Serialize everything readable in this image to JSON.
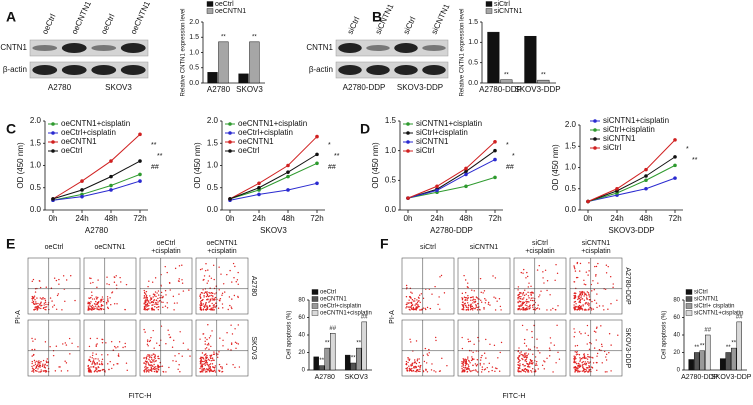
{
  "panel_labels": [
    "A",
    "B",
    "C",
    "D",
    "E",
    "F"
  ],
  "blots": [
    {
      "lanes": [
        "oeCtrl",
        "oeCNTN1",
        "oeCtrl",
        "oeCNTN1"
      ],
      "proteins": [
        "CNTN1",
        "β-actin"
      ],
      "groups": [
        "A2780",
        "SKOV3"
      ]
    },
    {
      "lanes": [
        "siCtrl",
        "siCNTN1",
        "siCtrl",
        "siCNTN1"
      ],
      "proteins": [
        "CNTN1",
        "β-actin"
      ],
      "groups": [
        "A2780-DDP",
        "SKOV3-DDP"
      ]
    }
  ],
  "flow_grids": [
    {
      "columns": [
        [
          "oeCtrl"
        ],
        [
          "oeCNTN1"
        ],
        [
          "oeCtrl",
          "+cisplatin"
        ],
        [
          "oeCNTN1",
          "+cisplatin"
        ]
      ],
      "rows": [
        "A2780",
        "SKOV3"
      ],
      "xlabel": "FITC-H",
      "ylabel": "PI-A"
    },
    {
      "columns": [
        [
          "siCtrl"
        ],
        [
          "siCNTN1"
        ],
        [
          "siCtrl",
          "+cisplatin"
        ],
        [
          "siCNTN1",
          "+cisplatin"
        ]
      ],
      "rows": [
        "A2780-DDP",
        "SKOV3-DDP"
      ],
      "xlabel": "FITC-H",
      "ylabel": "PI-A"
    }
  ],
  "chart_data": [
    {
      "type": "bar",
      "ylabel": "Relative CNTN1 expression level",
      "categories": [
        "A2780",
        "SKOV3"
      ],
      "series": [
        {
          "name": "oeCtrl",
          "color": "#111111",
          "values": [
            0.35,
            0.3
          ]
        },
        {
          "name": "oeCNTN1",
          "color": "#a6a6a6",
          "values": [
            1.35,
            1.35
          ]
        }
      ],
      "ylim": [
        0,
        2
      ],
      "yticks": [
        {
          "value": 0,
          "label": "0.0"
        },
        {
          "value": 0.5,
          "label": "0.5"
        },
        {
          "value": 1,
          "label": "1.0"
        },
        {
          "value": 1.5,
          "label": "1.5"
        },
        {
          "value": 2,
          "label": "2.0"
        }
      ],
      "annotations": [
        {
          "series": 1,
          "index": 0,
          "text": "**"
        },
        {
          "series": 1,
          "index": 1,
          "text": "**"
        }
      ]
    },
    {
      "type": "bar",
      "ylabel": "Relative CNTN1 expression level",
      "categories": [
        "A2780-DDP",
        "SKOV3-DDP"
      ],
      "series": [
        {
          "name": "siCtrl",
          "color": "#111111",
          "values": [
            1.25,
            1.15
          ]
        },
        {
          "name": "siCNTN1",
          "color": "#a6a6a6",
          "values": [
            0.08,
            0.07
          ]
        }
      ],
      "ylim": [
        0,
        1.5
      ],
      "yticks": [
        {
          "value": 0,
          "label": "0.0"
        },
        {
          "value": 0.5,
          "label": "0.5"
        },
        {
          "value": 1,
          "label": "1.0"
        },
        {
          "value": 1.5,
          "label": "1.5"
        }
      ],
      "annotations": [
        {
          "series": 1,
          "index": 0,
          "text": "**"
        },
        {
          "series": 1,
          "index": 1,
          "text": "**"
        }
      ]
    },
    {
      "type": "line",
      "ylabel": "OD (450 nm)",
      "xlabel": "A2780",
      "categories": [
        "0h",
        "24h",
        "48h",
        "72h"
      ],
      "series": [
        {
          "name": "oeCNTN1+cisplatin",
          "color": "#2e9a2e",
          "values": [
            0.22,
            0.35,
            0.55,
            0.8
          ]
        },
        {
          "name": "oeCtrl+cisplatin",
          "color": "#2a2ad0",
          "values": [
            0.22,
            0.3,
            0.45,
            0.65
          ]
        },
        {
          "name": "oeCNTN1",
          "color": "#d02020",
          "values": [
            0.25,
            0.65,
            1.1,
            1.7
          ]
        },
        {
          "name": "oeCtrl",
          "color": "#111111",
          "values": [
            0.25,
            0.45,
            0.75,
            1.1
          ]
        }
      ],
      "ylim": [
        0,
        2
      ],
      "yticks": [
        {
          "value": 0,
          "label": "0.0"
        },
        {
          "value": 0.5,
          "label": "0.5"
        },
        {
          "value": 1,
          "label": "1.0"
        },
        {
          "value": 1.5,
          "label": "1.5"
        },
        {
          "value": 2,
          "label": "2.0"
        }
      ],
      "annotations": [
        "**",
        "**",
        "##"
      ]
    },
    {
      "type": "line",
      "ylabel": "OD (450 nm)",
      "xlabel": "SKOV3",
      "categories": [
        "0h",
        "24h",
        "48h",
        "72h"
      ],
      "series": [
        {
          "name": "oeCNTN1+cisplatin",
          "color": "#2e9a2e",
          "values": [
            0.25,
            0.45,
            0.75,
            1.05
          ]
        },
        {
          "name": "oeCtrl+cisplatin",
          "color": "#2a2ad0",
          "values": [
            0.22,
            0.35,
            0.45,
            0.6
          ]
        },
        {
          "name": "oeCNTN1",
          "color": "#d02020",
          "values": [
            0.25,
            0.6,
            1.0,
            1.65
          ]
        },
        {
          "name": "oeCtrl",
          "color": "#111111",
          "values": [
            0.25,
            0.5,
            0.85,
            1.25
          ]
        }
      ],
      "ylim": [
        0,
        2
      ],
      "yticks": [
        {
          "value": 0,
          "label": "0.0"
        },
        {
          "value": 0.5,
          "label": "0.5"
        },
        {
          "value": 1,
          "label": "1.0"
        },
        {
          "value": 1.5,
          "label": "1.5"
        },
        {
          "value": 2,
          "label": "2.0"
        }
      ],
      "annotations": [
        "*",
        "**",
        "##"
      ]
    },
    {
      "type": "line",
      "ylabel": "OD (450 nm)",
      "xlabel": "A2780-DDP",
      "categories": [
        "0h",
        "24h",
        "48h",
        "72h"
      ],
      "series": [
        {
          "name": "siCNTN1+cisplatin",
          "color": "#2e9a2e",
          "values": [
            0.2,
            0.3,
            0.4,
            0.55
          ]
        },
        {
          "name": "siCtrl+cisplatin",
          "color": "#111111",
          "values": [
            0.2,
            0.35,
            0.65,
            1.0
          ]
        },
        {
          "name": "siCNTN1",
          "color": "#2a2ad0",
          "values": [
            0.2,
            0.33,
            0.6,
            0.85
          ]
        },
        {
          "name": "siCtrl",
          "color": "#d02020",
          "values": [
            0.2,
            0.4,
            0.7,
            1.15
          ]
        }
      ],
      "ylim": [
        0,
        1.5
      ],
      "yticks": [
        {
          "value": 0,
          "label": "0.0"
        },
        {
          "value": 0.5,
          "label": "0.5"
        },
        {
          "value": 1,
          "label": "1.0"
        },
        {
          "value": 1.5,
          "label": "1.5"
        }
      ],
      "annotations": [
        "*",
        "*",
        "##"
      ]
    },
    {
      "type": "line",
      "ylabel": "OD (450 nm)",
      "xlabel": "SKOV3-DDP",
      "categories": [
        "0h",
        "24h",
        "48h",
        "72h"
      ],
      "series": [
        {
          "name": "siCNTN1+cisplatin",
          "color": "#2a2ad0",
          "values": [
            0.2,
            0.35,
            0.5,
            0.75
          ]
        },
        {
          "name": "siCtrl+cisplatin",
          "color": "#2e9a2e",
          "values": [
            0.2,
            0.4,
            0.7,
            1.05
          ]
        },
        {
          "name": "siCNTN1",
          "color": "#111111",
          "values": [
            0.2,
            0.45,
            0.8,
            1.25
          ]
        },
        {
          "name": "siCtrl",
          "color": "#d02020",
          "values": [
            0.2,
            0.5,
            0.95,
            1.65
          ]
        }
      ],
      "ylim": [
        0,
        2
      ],
      "yticks": [
        {
          "value": 0,
          "label": "0.0"
        },
        {
          "value": 0.5,
          "label": "0.5"
        },
        {
          "value": 1,
          "label": "1.0"
        },
        {
          "value": 1.5,
          "label": "1.5"
        },
        {
          "value": 2,
          "label": "2.0"
        }
      ],
      "annotations": [
        "*",
        "**"
      ]
    },
    {
      "type": "bar",
      "ylabel": "Cell apoptosis (%)",
      "categories": [
        "A2780",
        "SKOV3"
      ],
      "series": [
        {
          "name": "oeCtrl",
          "color": "#111111",
          "values": [
            15,
            17
          ]
        },
        {
          "name": "oeCNTN1",
          "color": "#555555",
          "values": [
            5,
            8
          ]
        },
        {
          "name": "oeCtrl+cisplatin",
          "color": "#999999",
          "values": [
            25,
            25
          ]
        },
        {
          "name": "oeCNTN1+cisplatin",
          "color": "#d9d9d9",
          "values": [
            42,
            55
          ]
        }
      ],
      "ylim": [
        0,
        80
      ],
      "yticks": [
        0,
        20,
        40,
        60,
        80
      ],
      "annotations": [
        {
          "series": 1,
          "index": 0,
          "text": "**"
        },
        {
          "series": 2,
          "index": 0,
          "text": "**"
        },
        {
          "series": 3,
          "index": 0,
          "text": "##"
        },
        {
          "series": 1,
          "index": 1,
          "text": "**"
        },
        {
          "series": 2,
          "index": 1,
          "text": "**"
        },
        {
          "series": 3,
          "index": 1,
          "text": "##"
        }
      ]
    },
    {
      "type": "bar",
      "ylabel": "Cell apoptosis (%)",
      "categories": [
        "A2780-DDP",
        "SKOV3-DDP"
      ],
      "series": [
        {
          "name": "siCtrl",
          "color": "#111111",
          "values": [
            12,
            13
          ]
        },
        {
          "name": "siCNTN1",
          "color": "#555555",
          "values": [
            20,
            20
          ]
        },
        {
          "name": "siCtrl+ cisplatin",
          "color": "#999999",
          "values": [
            22,
            25
          ]
        },
        {
          "name": "siCNTN1+cisplatin",
          "color": "#d9d9d9",
          "values": [
            40,
            55
          ]
        }
      ],
      "ylim": [
        0,
        80
      ],
      "yticks": [
        0,
        20,
        40,
        60,
        80
      ],
      "annotations": [
        {
          "series": 1,
          "index": 0,
          "text": "**"
        },
        {
          "series": 2,
          "index": 0,
          "text": "**"
        },
        {
          "series": 3,
          "index": 0,
          "text": "##"
        },
        {
          "series": 1,
          "index": 1,
          "text": "**"
        },
        {
          "series": 2,
          "index": 1,
          "text": "**"
        },
        {
          "series": 3,
          "index": 1,
          "text": "##"
        }
      ]
    }
  ]
}
